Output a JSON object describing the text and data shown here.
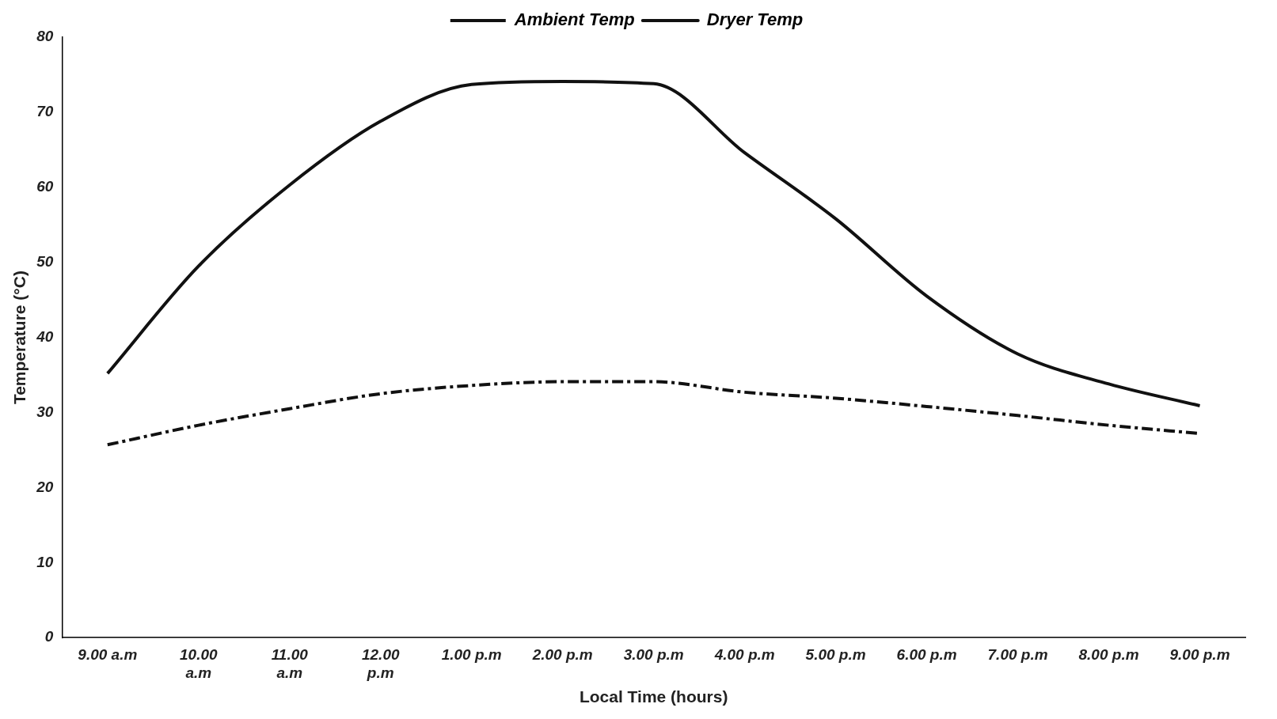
{
  "chart_data": {
    "type": "line",
    "xlabel": "Local Time (hours)",
    "ylabel": "Temperature (°C)",
    "categories": [
      "9.00 a.m",
      "10.00\na.m",
      "11.00\na.m",
      "12.00\np.m",
      "1.00 p.m",
      "2.00 p.m",
      "3.00 p.m",
      "4.00 p.m",
      "5.00 p.m",
      "6.00 p.m",
      "7.00 p.m",
      "8.00 p.m",
      "9.00 p.m"
    ],
    "series": [
      {
        "name": "Ambient Temp",
        "color": "#111111",
        "line_style": "dashed",
        "values": [
          25.7,
          28.3,
          30.5,
          32.5,
          33.6,
          34.1,
          34.1,
          32.7,
          31.9,
          30.8,
          29.6,
          28.3,
          27.2
        ]
      },
      {
        "name": "Dryer Temp",
        "color": "#111111",
        "line_style": "solid",
        "values": [
          35.2,
          49.5,
          60.3,
          68.8,
          73.7,
          74.1,
          73.8,
          64.6,
          55.8,
          45.5,
          37.8,
          33.8,
          30.9
        ]
      }
    ],
    "ylim": [
      0,
      80
    ],
    "yticks": [
      0,
      10,
      20,
      30,
      40,
      50,
      60,
      70,
      80
    ],
    "grid": false,
    "legend": "top",
    "marker": "none"
  }
}
